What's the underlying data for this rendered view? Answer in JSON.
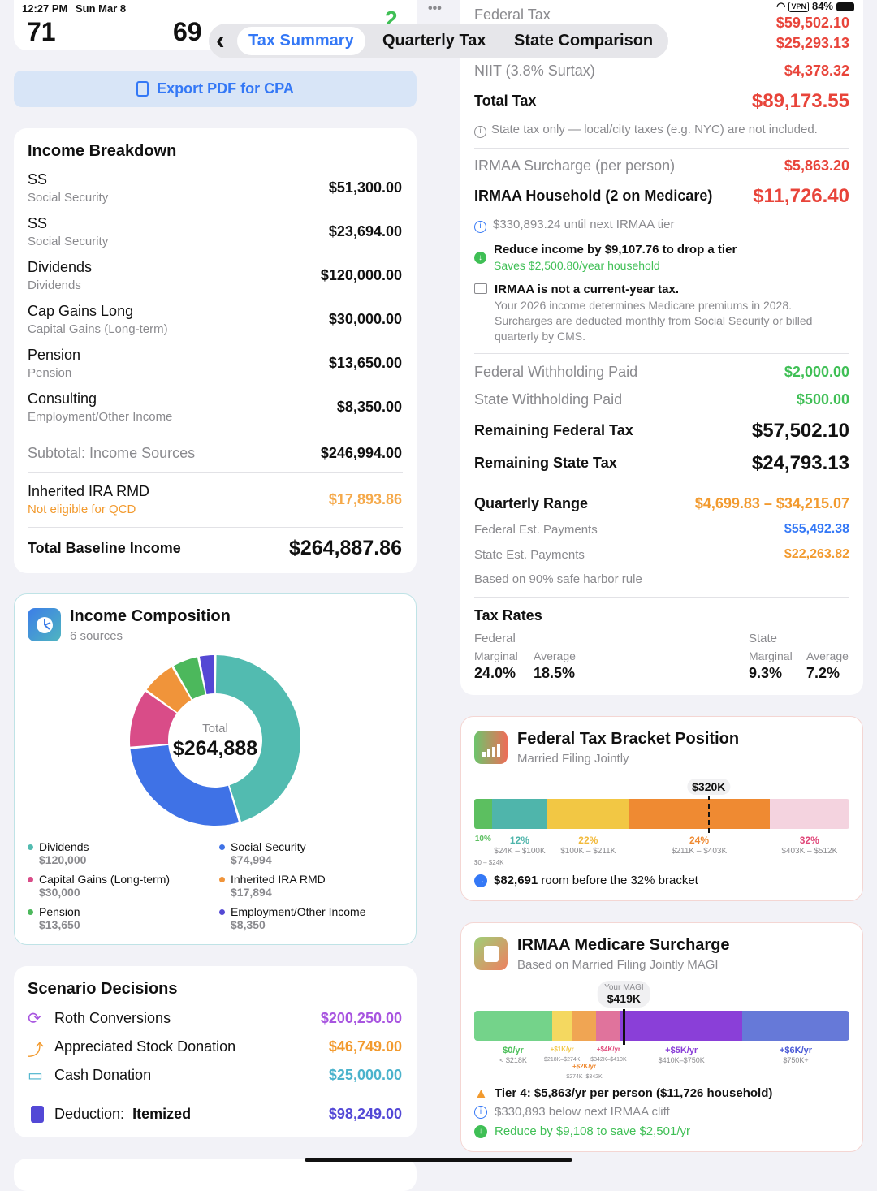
{
  "status_bar": {
    "time": "12:27 PM",
    "date": "Sun Mar 8",
    "vpn": "VPN",
    "battery": "84%"
  },
  "top_card": {
    "left_number": "71",
    "right_number": "69",
    "badge": "2"
  },
  "more_label": "•••",
  "nav": {
    "back": "‹",
    "tabs": [
      {
        "label": "Tax Summary",
        "active": true
      },
      {
        "label": "Quarterly Tax"
      },
      {
        "label": "State Comparison"
      }
    ]
  },
  "export_button": "Export PDF for CPA",
  "income_breakdown": {
    "title": "Income Breakdown",
    "items": [
      {
        "name": "SS",
        "type": "Social Security",
        "amount": "$51,300.00"
      },
      {
        "name": "SS",
        "type": "Social Security",
        "amount": "$23,694.00"
      },
      {
        "name": "Dividends",
        "type": "Dividends",
        "amount": "$120,000.00"
      },
      {
        "name": "Cap Gains Long",
        "type": "Capital Gains (Long-term)",
        "amount": "$30,000.00"
      },
      {
        "name": "Pension",
        "type": "Pension",
        "amount": "$13,650.00"
      },
      {
        "name": "Consulting",
        "type": "Employment/Other Income",
        "amount": "$8,350.00"
      }
    ],
    "subtotal_label": "Subtotal: Income Sources",
    "subtotal": "$246,994.00",
    "rmd_label": "Inherited IRA RMD",
    "rmd_note": "Not eligible for QCD",
    "rmd_amount": "$17,893.86",
    "total_label": "Total Baseline Income",
    "total": "$264,887.86"
  },
  "income_composition": {
    "title": "Income Composition",
    "subtitle": "6 sources",
    "center_label": "Total",
    "center_value": "$264,888"
  },
  "chart_data": {
    "type": "pie",
    "donut": true,
    "title": "Income Composition",
    "total": 264888,
    "series": [
      {
        "name": "Dividends",
        "value": 120000,
        "label": "$120,000",
        "color": "#52bbb0"
      },
      {
        "name": "Social Security",
        "value": 74994,
        "label": "$74,994",
        "color": "#3f72e6"
      },
      {
        "name": "Capital Gains (Long-term)",
        "value": 30000,
        "label": "$30,000",
        "color": "#d94c88"
      },
      {
        "name": "Inherited IRA RMD",
        "value": 17894,
        "label": "$17,894",
        "color": "#f0943a"
      },
      {
        "name": "Pension",
        "value": 13650,
        "label": "$13,650",
        "color": "#4cb85c"
      },
      {
        "name": "Employment/Other Income",
        "value": 8350,
        "label": "$8,350",
        "color": "#5448d4"
      }
    ],
    "legend_placement": "bottom"
  },
  "scenario": {
    "title": "Scenario Decisions",
    "items": [
      {
        "icon": "roth-conversion-icon",
        "label": "Roth Conversions",
        "amount": "$200,250.00",
        "color": "#a855e0"
      },
      {
        "icon": "chart-up-icon",
        "label": "Appreciated Stock Donation",
        "amount": "$46,749.00",
        "color": "#f29a2e"
      },
      {
        "icon": "banknote-icon",
        "label": "Cash Donation",
        "amount": "$25,000.00",
        "color": "#4bb3cc"
      }
    ],
    "deduction_label": "Deduction:",
    "deduction_type": "Itemized",
    "deduction_amount": "$98,249.00",
    "deduction_color": "#5348d6"
  },
  "tax_summary": {
    "federal_tax_label": "Federal Tax",
    "federal_tax": "$59,502.10",
    "state_tax": "$25,293.13",
    "niit_label": "NIIT (3.8% Surtax)",
    "niit": "$4,378.32",
    "total_label": "Total Tax",
    "total": "$89,173.55",
    "state_note": "State tax only — local/city taxes (e.g. NYC) are not included.",
    "irmaa_label": "IRMAA Surcharge (per person)",
    "irmaa": "$5,863.20",
    "irmaa_household_label": "IRMAA Household (2 on Medicare)",
    "irmaa_household": "$11,726.40",
    "next_tier": "$330,893.24 until next IRMAA tier",
    "reduce_title": "Reduce income by $9,107.76 to drop a tier",
    "reduce_saves": "Saves $2,500.80/year household",
    "not_current_title": "IRMAA is not a current-year tax.",
    "not_current_body": [
      "Your 2026 income determines Medicare premiums in 2028.",
      "Surcharges are deducted monthly from Social Security or billed",
      "quarterly by CMS."
    ],
    "fed_withholding_label": "Federal Withholding Paid",
    "fed_withholding": "$2,000.00",
    "state_withholding_label": "State Withholding Paid",
    "state_withholding": "$500.00",
    "remaining_fed_label": "Remaining Federal Tax",
    "remaining_fed": "$57,502.10",
    "remaining_state_label": "Remaining State Tax",
    "remaining_state": "$24,793.13",
    "quarterly_label": "Quarterly Range",
    "quarterly": "$4,699.83 – $34,215.07",
    "fed_est_label": "Federal Est. Payments",
    "fed_est": "$55,492.38",
    "state_est_label": "State Est. Payments",
    "state_est": "$22,263.82",
    "safe_harbor": "Based on 90% safe harbor rule",
    "rates_title": "Tax Rates",
    "federal": "Federal",
    "state": "State",
    "marginal": "Marginal",
    "average": "Average",
    "fed_marginal": "24.0%",
    "fed_average": "18.5%",
    "state_marginal": "9.3%",
    "state_average": "7.2%"
  },
  "bracket": {
    "title": "Federal Tax Bracket Position",
    "subtitle": "Married Filing Jointly",
    "marker_label": "$320K",
    "marker_value": 320,
    "segments": [
      {
        "rate": "10%",
        "range": "$0 – $24K",
        "from": 0,
        "to": 24,
        "color": "#5cbf60",
        "text": "#5cbf60"
      },
      {
        "rate": "12%",
        "range": "$24K – $100K",
        "from": 24,
        "to": 100,
        "color": "#4fb5ab",
        "text": "#4fb5ab"
      },
      {
        "rate": "22%",
        "range": "$100K – $211K",
        "from": 100,
        "to": 211,
        "color": "#f2c744",
        "text": "#f2b93a"
      },
      {
        "rate": "24%",
        "range": "$211K – $403K",
        "from": 211,
        "to": 403,
        "color": "#ef8a32",
        "text": "#ef8a32"
      },
      {
        "rate": "32%",
        "range": "$403K – $512K",
        "from": 403,
        "to": 512,
        "color": "#f4d3df",
        "text": "#e0487a"
      }
    ],
    "room_text": "$82,691",
    "room_suffix": "room before the 32% bracket"
  },
  "irmaa_card": {
    "title": "IRMAA Medicare Surcharge",
    "subtitle": "Based on Married Filing Jointly MAGI",
    "magi_label": "Your MAGI",
    "magi_value_label": "$419K",
    "magi_value": 419,
    "tiers": [
      {
        "surcharge": "$0/yr",
        "range": "< $218K",
        "from": 0,
        "to": 218,
        "color": "#74d38a",
        "text": "#4cbf5a"
      },
      {
        "surcharge": "+$1K/yr",
        "range": "$218K–$274K",
        "from": 218,
        "to": 274,
        "color": "#f4d860",
        "text": "#f2c744"
      },
      {
        "surcharge": "+$2K/yr",
        "range": "$274K–$342K",
        "from": 274,
        "to": 342,
        "color": "#f0a553",
        "text": "#ef8a32"
      },
      {
        "surcharge": "+$4K/yr",
        "range": "$342K–$410K",
        "from": 342,
        "to": 410,
        "color": "#e0739c",
        "text": "#e0487a"
      },
      {
        "surcharge": "+$5K/yr",
        "range": "$410K–$750K",
        "from": 410,
        "to": 750,
        "color": "#8a3fd8",
        "text": "#8a3fd8"
      },
      {
        "surcharge": "+$6K/yr",
        "range": "$750K+",
        "from": 750,
        "to": 1050,
        "color": "#6679d8",
        "text": "#4a5ad6"
      }
    ],
    "tier_note": "Tier 4: $5,863/yr per person ($11,726 household)",
    "cliff_note": "$330,893 below next IRMAA cliff",
    "reduce_note": "Reduce by $9,108 to save $2,501/yr"
  }
}
